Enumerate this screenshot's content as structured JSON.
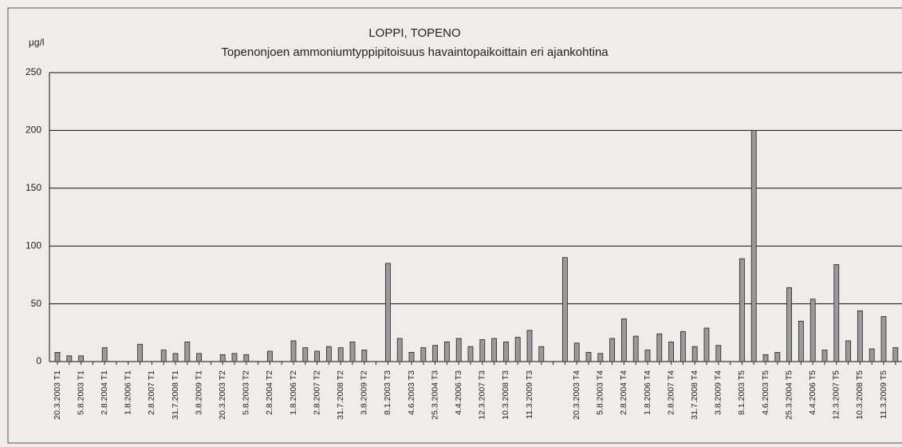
{
  "chart_data": {
    "type": "bar",
    "title": "LOPPI, TOPENO",
    "subtitle": "Topenonjoen ammoniumtyppipitoisuus havaintopaikoittain eri ajankohtina",
    "y_label": "µg/l",
    "categories": [
      "20.3.2003 T1",
      null,
      "5.8.2003 T1",
      null,
      "2.8.2004 T1",
      null,
      "1.8.2006 T1",
      null,
      "2.8.2007 T1",
      null,
      "31.7.2008 T1",
      null,
      "3.8.2009 T1",
      null,
      "20.3.2003 T2",
      null,
      "5.8.2003 T2",
      null,
      "2.8.2004 T2",
      null,
      "1.8.2006 T2",
      null,
      "2.8.2007 T2",
      null,
      "31.7.2008 T2",
      null,
      "3.8.2009 T2",
      null,
      "8.1.2003 T3",
      null,
      "4.6.2003 T3",
      null,
      "25.3.2004 T3",
      null,
      "4.4.2006 T3",
      null,
      "12.3.2007 T3",
      null,
      "10.3.2008 T3",
      null,
      "11.3.2009 T3",
      null,
      null,
      null,
      "20.3.2003 T4",
      null,
      "5.8.2003 T4",
      null,
      "2.8.2004 T4",
      null,
      "1.8.2006 T4",
      null,
      "2.8.2007 T4",
      null,
      "31.7.2008 T4",
      null,
      "3.8.2009 T4",
      null,
      "8.1.2003 T5",
      null,
      "4.6.2003 T5",
      null,
      "25.3.2004 T5",
      null,
      "4.4.2006 T5",
      null,
      "12.3.2007 T5",
      null,
      "10.3.2008 T5",
      null,
      "11.3.2009 T5",
      null
    ],
    "values": [
      8,
      5,
      5,
      null,
      12,
      null,
      null,
      15,
      null,
      10,
      7,
      17,
      7,
      null,
      6,
      7,
      6,
      null,
      9,
      null,
      18,
      12,
      9,
      13,
      12,
      17,
      10,
      null,
      85,
      20,
      8,
      12,
      14,
      17,
      20,
      13,
      19,
      20,
      17,
      21,
      27,
      13,
      null,
      90,
      16,
      8,
      7,
      20,
      37,
      22,
      10,
      24,
      17,
      26,
      13,
      29,
      14,
      null,
      89,
      200,
      6,
      8,
      64,
      35,
      54,
      10,
      84,
      18,
      44,
      11,
      39,
      12
    ],
    "color": "#9a9a9a",
    "ylim": [
      0,
      250
    ],
    "yticks": [
      0,
      50,
      100,
      150,
      200,
      250
    ],
    "grid": true
  }
}
